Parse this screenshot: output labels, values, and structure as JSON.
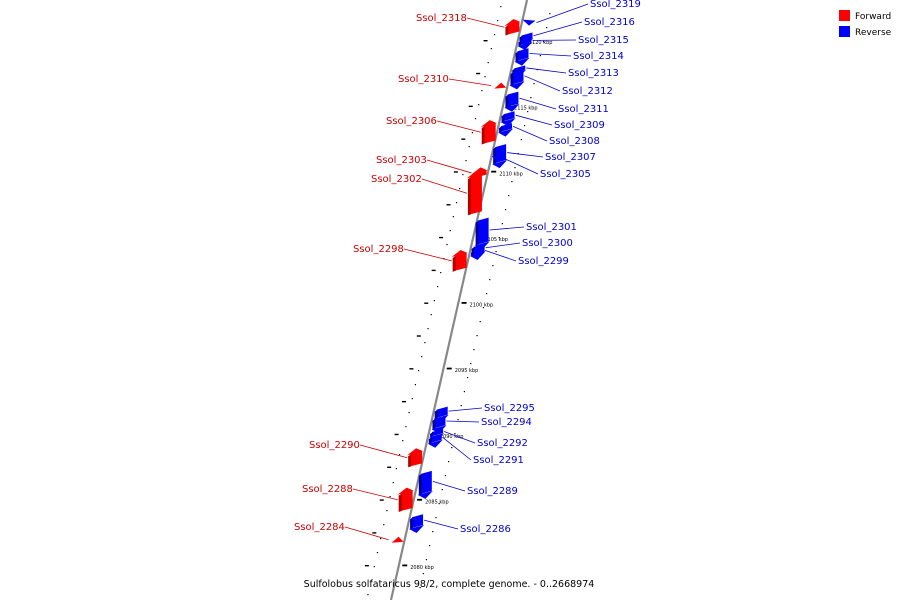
{
  "caption": "Sulfolobus solfataricus 98/2, complete genome. - 0..2668974",
  "legend": [
    {
      "label": "Forward",
      "color": "#ff0000"
    },
    {
      "label": "Reverse",
      "color": "#0000ff"
    }
  ],
  "colors": {
    "forward": "#ff0000",
    "forward_dark": "#b30000",
    "reverse": "#0000ff",
    "reverse_dark": "#0000a0",
    "forward_label": "#cc0000",
    "reverse_label": "#0000cc",
    "backbone": "#888888"
  },
  "chart_data": {
    "type": "genome-map",
    "kbp_range": [
      2079,
      2122
    ],
    "ticks": [
      {
        "kbp": 2080,
        "label": "2080 kbp"
      },
      {
        "kbp": 2085,
        "label": "2085 kbp"
      },
      {
        "kbp": 2090,
        "label": "2090 kbp"
      },
      {
        "kbp": 2095,
        "label": "2095 kbp"
      },
      {
        "kbp": 2100,
        "label": "2100 kbp"
      },
      {
        "kbp": 2105,
        "label": "2105 kbp"
      },
      {
        "kbp": 2110,
        "label": "2110 kbp"
      },
      {
        "kbp": 2115,
        "label": "2115 kbp"
      },
      {
        "kbp": 2120,
        "label": "2120 kbp"
      }
    ],
    "genes": [
      {
        "name": "Ssol_2318",
        "strand": "forward",
        "start": 2120.8,
        "end": 2121.6
      },
      {
        "name": "Ssol_2319",
        "strand": "reverse",
        "start": 2121.4,
        "end": 2121.7
      },
      {
        "name": "Ssol_2316",
        "strand": "reverse",
        "start": 2120.3,
        "end": 2120.8
      },
      {
        "name": "Ssol_2315",
        "strand": "reverse",
        "start": 2120.0,
        "end": 2120.4
      },
      {
        "name": "Ssol_2314",
        "strand": "reverse",
        "start": 2118.8,
        "end": 2119.6
      },
      {
        "name": "Ssol_2313",
        "strand": "reverse",
        "start": 2117.9,
        "end": 2118.3
      },
      {
        "name": "Ssol_2312",
        "strand": "reverse",
        "start": 2117.0,
        "end": 2118.0
      },
      {
        "name": "Ssol_2310",
        "strand": "forward",
        "start": 2116.6,
        "end": 2116.9
      },
      {
        "name": "Ssol_2311",
        "strand": "reverse",
        "start": 2115.3,
        "end": 2116.3
      },
      {
        "name": "Ssol_2309",
        "strand": "reverse",
        "start": 2114.2,
        "end": 2114.8
      },
      {
        "name": "Ssol_2306",
        "strand": "forward",
        "start": 2112.5,
        "end": 2113.9
      },
      {
        "name": "Ssol_2308",
        "strand": "reverse",
        "start": 2113.4,
        "end": 2113.9
      },
      {
        "name": "Ssol_2307",
        "strand": "reverse",
        "start": 2111.0,
        "end": 2112.3
      },
      {
        "name": "Ssol_2305",
        "strand": "reverse",
        "start": 2111.0,
        "end": 2111.3
      },
      {
        "name": "Ssol_2303",
        "strand": "forward",
        "start": 2109.9,
        "end": 2110.3
      },
      {
        "name": "Ssol_2302",
        "strand": "forward",
        "start": 2107.1,
        "end": 2110.0
      },
      {
        "name": "Ssol_2301",
        "strand": "reverse",
        "start": 2104.8,
        "end": 2106.7
      },
      {
        "name": "Ssol_2300",
        "strand": "reverse",
        "start": 2104.1,
        "end": 2104.7
      },
      {
        "name": "Ssol_2298",
        "strand": "forward",
        "start": 2102.8,
        "end": 2104.0
      },
      {
        "name": "Ssol_2299",
        "strand": "reverse",
        "start": 2104.0,
        "end": 2104.4
      },
      {
        "name": "Ssol_2295",
        "strand": "reverse",
        "start": 2091.6,
        "end": 2092.3
      },
      {
        "name": "Ssol_2294",
        "strand": "reverse",
        "start": 2090.8,
        "end": 2091.6
      },
      {
        "name": "Ssol_2292",
        "strand": "reverse",
        "start": 2090.2,
        "end": 2090.6
      },
      {
        "name": "Ssol_2291",
        "strand": "reverse",
        "start": 2089.7,
        "end": 2090.2
      },
      {
        "name": "Ssol_2290",
        "strand": "forward",
        "start": 2087.9,
        "end": 2088.9
      },
      {
        "name": "Ssol_2289",
        "strand": "reverse",
        "start": 2085.8,
        "end": 2087.4
      },
      {
        "name": "Ssol_2288",
        "strand": "forward",
        "start": 2084.5,
        "end": 2085.9
      },
      {
        "name": "Ssol_2286",
        "strand": "reverse",
        "start": 2083.2,
        "end": 2084.1
      },
      {
        "name": "Ssol_2284",
        "strand": "forward",
        "start": 2082.0,
        "end": 2082.3
      }
    ]
  }
}
